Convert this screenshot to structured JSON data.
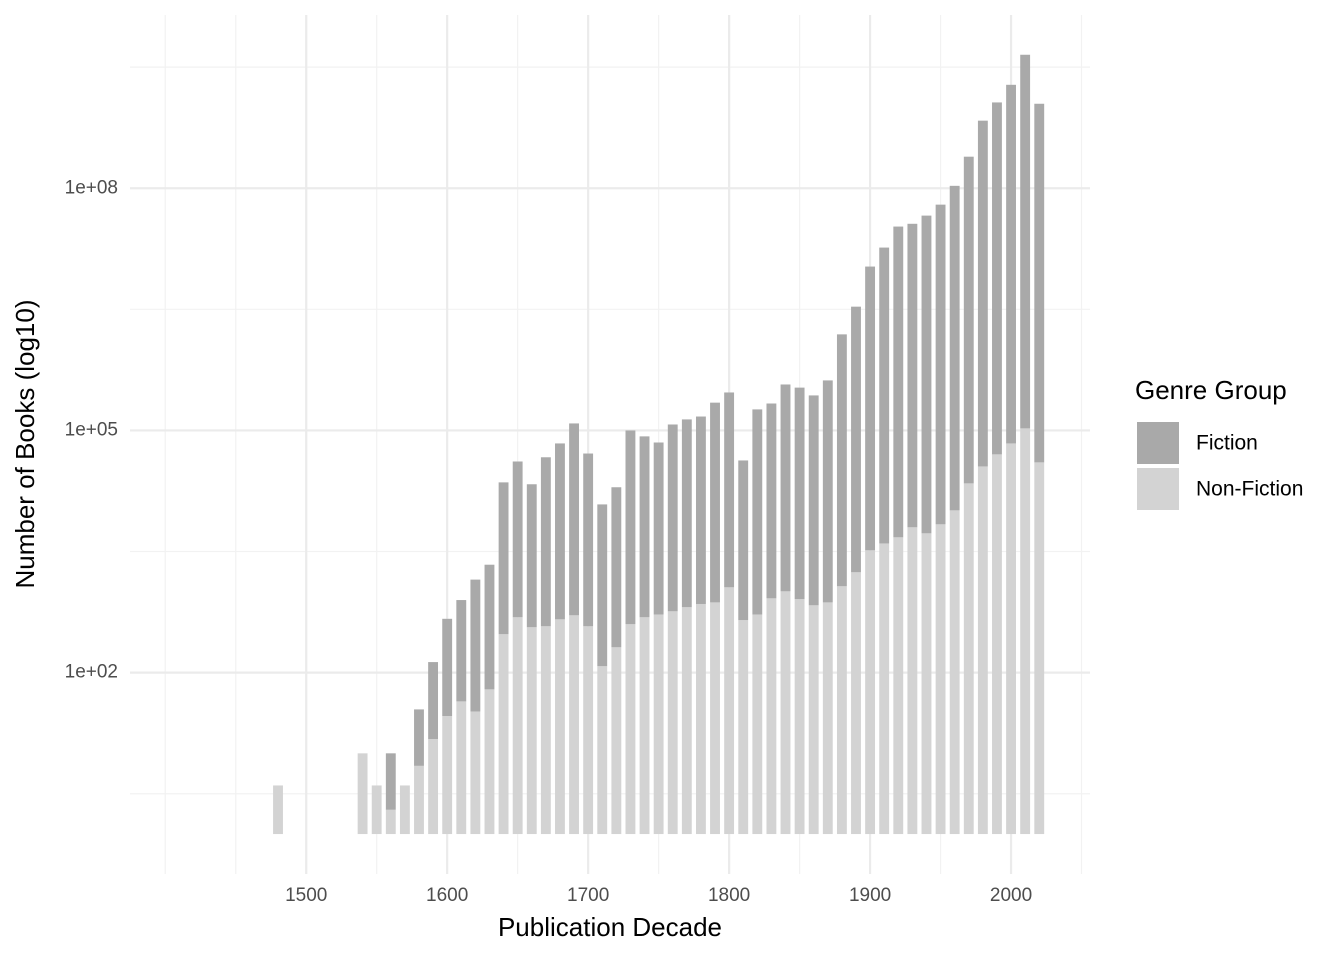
{
  "chart_data": {
    "type": "stacked_bar_log",
    "x_label": "Publication Decade",
    "y_label": "Number of Books (log10)",
    "legend_title": "Genre Group",
    "x": [
      1480,
      1540,
      1550,
      1560,
      1570,
      1580,
      1590,
      1600,
      1610,
      1620,
      1630,
      1640,
      1650,
      1660,
      1670,
      1680,
      1690,
      1700,
      1710,
      1720,
      1730,
      1740,
      1750,
      1760,
      1770,
      1780,
      1790,
      1800,
      1810,
      1820,
      1830,
      1840,
      1850,
      1860,
      1870,
      1880,
      1890,
      1900,
      1910,
      1920,
      1930,
      1940,
      1950,
      1960,
      1970,
      1980,
      1990,
      2000,
      2010,
      2020
    ],
    "series": [
      {
        "name": "Fiction",
        "color": "#a9a9a9",
        "values": [
          null,
          null,
          null,
          5,
          null,
          5,
          9,
          16,
          18,
          43,
          35,
          76,
          85,
          59,
          124,
          151,
          238,
          138,
          101,
          96,
          251,
          174,
          135,
          206,
          212,
          210,
          298,
          259,
          95,
          347,
          259,
          365,
          417,
          398,
          562,
          1318,
          1950,
          3273,
          4624,
          7070,
          5750,
          8630,
          9120,
          10470,
          11140,
          19200,
          22900,
          27700,
          42500,
          27700
        ]
      },
      {
        "name": "Non-Fiction",
        "color": "#d3d3d3",
        "values": [
          4,
          10,
          4,
          2,
          4,
          7,
          15,
          29,
          44,
          33,
          62,
          299,
          485,
          365,
          375,
          457,
          513,
          375,
          120,
          206,
          398,
          485,
          525,
          575,
          646,
          708,
          741,
          1140,
          447,
          525,
          832,
          1016,
          813,
          682,
          741,
          1175,
          1750,
          3273,
          3981,
          4742,
          6310,
          5310,
          6870,
          10230,
          22080,
          35800,
          50500,
          69000,
          106000,
          40200
        ]
      }
    ],
    "xlim": [
      1375,
      2056
    ],
    "xticks": [
      1500,
      1600,
      1700,
      1800,
      1900,
      2000
    ],
    "xticks_minor": [
      1400,
      1450,
      1550,
      1650,
      1750,
      1850,
      1950,
      2050
    ],
    "ylim": [
      0.32,
      14000000000
    ],
    "log_y": true,
    "yticks": [
      {
        "value": 100,
        "label": "1e+02"
      },
      {
        "value": 100000,
        "label": "1e+05"
      },
      {
        "value": 100000000,
        "label": "1e+08"
      }
    ],
    "yticks_minor": [
      3.16,
      3162,
      3162278,
      3162277660
    ],
    "grid": true,
    "legend_position": "right"
  }
}
